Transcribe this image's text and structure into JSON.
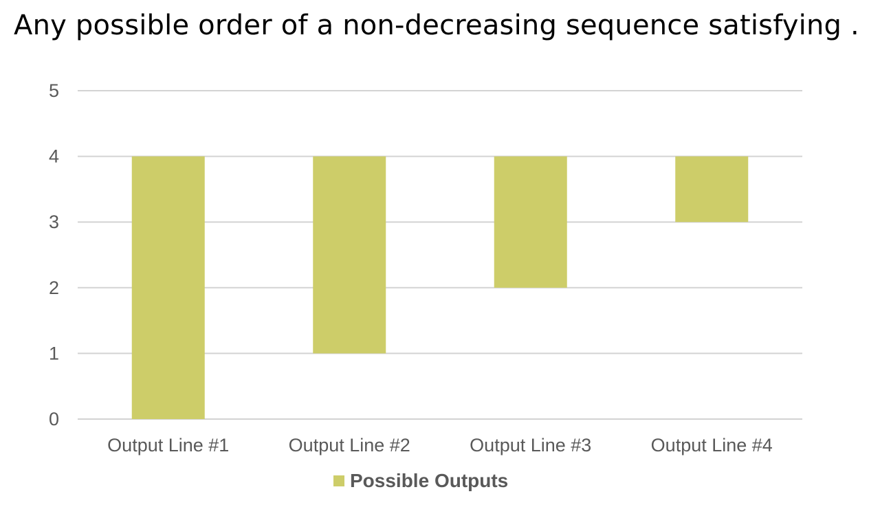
{
  "title": "Any possible order of a non-decreasing sequence satisfying . . .",
  "colors": {
    "bar": "#cdcd69",
    "grid": "#d3d3d3",
    "tick_text": "#595959"
  },
  "legend": {
    "label": "Possible Outputs",
    "position": "bottom"
  },
  "chart_data": {
    "type": "bar",
    "subtype": "floating",
    "categories": [
      "Output Line #1",
      "Output Line #2",
      "Output Line #3",
      "Output Line #4"
    ],
    "series": [
      {
        "name": "Possible Outputs",
        "ranges": [
          [
            0,
            4
          ],
          [
            1,
            4
          ],
          [
            2,
            4
          ],
          [
            3,
            4
          ]
        ]
      }
    ],
    "yticks": [
      0,
      1,
      2,
      3,
      4,
      5
    ],
    "ylim": [
      0,
      5
    ],
    "grid": true,
    "legend_position": "bottom"
  }
}
